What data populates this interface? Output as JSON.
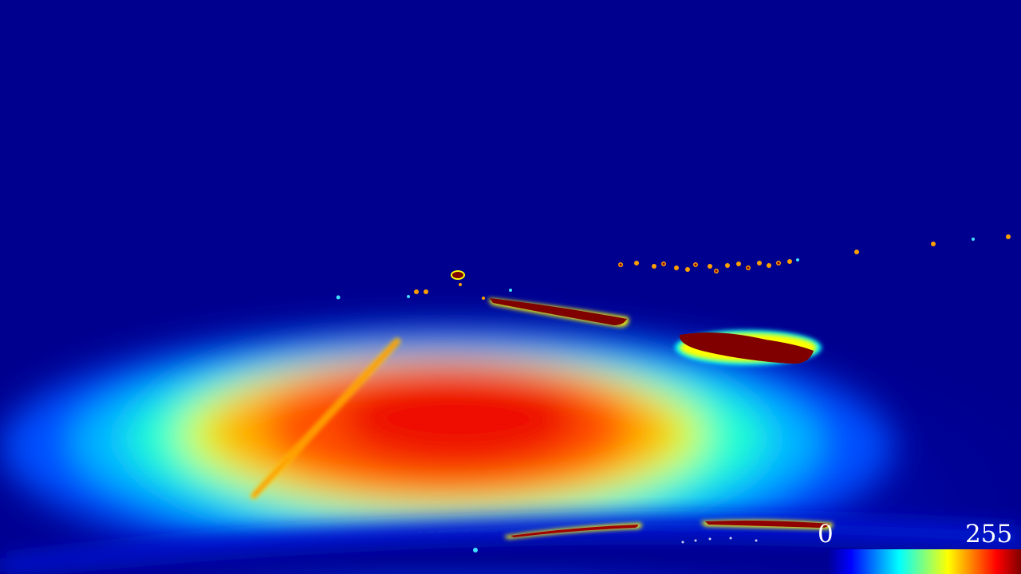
{
  "colorbar": {
    "min_label": "0",
    "max_label": "255",
    "colormap": "jet",
    "stops": [
      "#00008f",
      "#0000ff",
      "#00ffff",
      "#ffff00",
      "#ff0000",
      "#800000"
    ]
  },
  "colors": {
    "background": "#00008f",
    "hot": "#ff2200",
    "saturated": "#800000"
  }
}
